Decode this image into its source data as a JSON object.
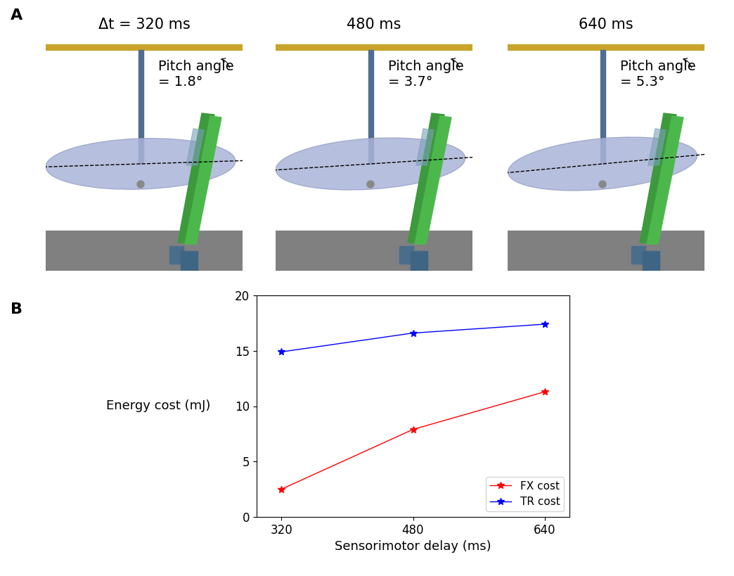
{
  "panel_a": {
    "label": "A",
    "frames": [
      {
        "title": "Δt = 320 ms",
        "pitch_angle": 1.8,
        "pitch_text": "Pitch angle\n= 1.8°"
      },
      {
        "title": "480 ms",
        "pitch_angle": 3.7,
        "pitch_text": "Pitch angle\n= 3.7°"
      },
      {
        "title": "640 ms",
        "pitch_angle": 5.3,
        "pitch_text": "Pitch angle\n= 5.3°"
      }
    ]
  },
  "chart_data": {
    "type": "line",
    "label": "B",
    "x_label": "Sensorimotor delay (ms)",
    "y_label": "Energy cost (mJ)",
    "x": [
      320,
      480,
      640
    ],
    "series": [
      {
        "name": "FX cost",
        "color": "#ff0000",
        "marker": "*",
        "line_style": "solid",
        "values": [
          2.5,
          7.9,
          11.3
        ]
      },
      {
        "name": "TR cost",
        "color": "#0000ff",
        "marker": "*",
        "line_style": "solid",
        "values": [
          14.9,
          16.6,
          17.4
        ]
      }
    ],
    "xlim": [
      290,
      670
    ],
    "xticks": [
      320,
      480,
      640
    ],
    "ylim": [
      0,
      20
    ],
    "yticks": [
      0,
      5,
      10,
      15,
      20
    ],
    "legend": "lower right",
    "grid": false
  }
}
